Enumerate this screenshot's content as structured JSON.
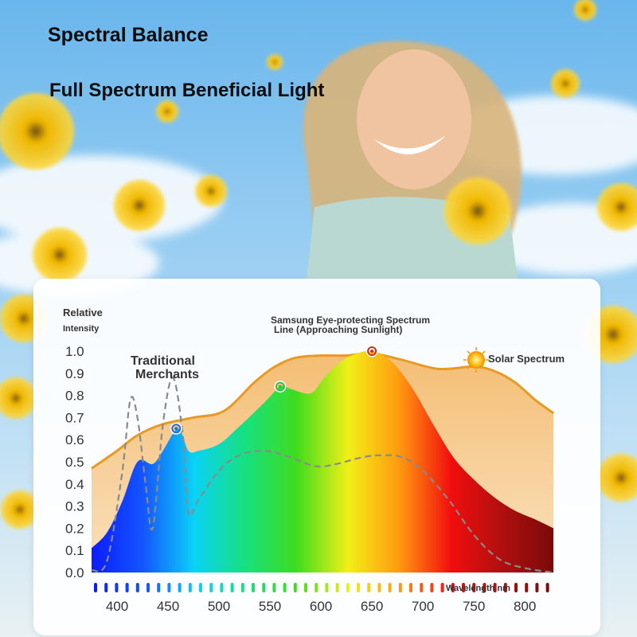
{
  "title": "Spectral Balance",
  "subtitle": "Full Spectrum Beneficial Light",
  "chart_data": {
    "type": "area",
    "ylabel_line1": "Relative",
    "ylabel_line2": "Intensity",
    "xlabel": "Wavelength nm",
    "ylim": [
      0.0,
      1.0
    ],
    "xlim": [
      375,
      828
    ],
    "yticks": [
      "0.0",
      "0.1",
      "0.2",
      "0.3",
      "0.4",
      "0.5",
      "0.6",
      "0.7",
      "0.8",
      "0.9",
      "1.0"
    ],
    "xticks": [
      400,
      450,
      500,
      550,
      600,
      650,
      700,
      750,
      800
    ],
    "annotations": {
      "samsung_line1": "Samsung Eye-protecting Spectrum",
      "samsung_line2": "Line (Approaching Sunlight)",
      "traditional_line1": "Traditional",
      "traditional_line2": "Merchants",
      "solar": "Solar Spectrum"
    },
    "series": [
      {
        "name": "Solar Spectrum",
        "color": "#e89a24",
        "x": [
          375,
          400,
          420,
          445,
          475,
          505,
          535,
          555,
          575,
          600,
          625,
          650,
          680,
          715,
          750,
          770,
          790,
          810,
          828
        ],
        "y": [
          0.47,
          0.55,
          0.62,
          0.67,
          0.7,
          0.73,
          0.86,
          0.93,
          0.97,
          0.98,
          0.98,
          0.99,
          0.96,
          0.92,
          0.93,
          0.91,
          0.86,
          0.78,
          0.72
        ]
      },
      {
        "name": "Samsung Eye-protecting Spectrum Line (Approaching Sunlight)",
        "colors": [
          "#0a1cff",
          "#1455ff",
          "#0ad2f5",
          "#17e07e",
          "#3fdc1c",
          "#f2ef18",
          "#ff9a10",
          "#f20e0e",
          "#b00f0f",
          "#7a0a0a"
        ],
        "x": [
          375,
          390,
          405,
          420,
          435,
          445,
          460,
          470,
          480,
          500,
          520,
          545,
          560,
          570,
          590,
          605,
          625,
          650,
          670,
          690,
          710,
          730,
          750,
          770,
          790,
          810,
          828
        ],
        "y": [
          0.11,
          0.18,
          0.32,
          0.5,
          0.49,
          0.55,
          0.65,
          0.55,
          0.55,
          0.58,
          0.66,
          0.77,
          0.84,
          0.83,
          0.81,
          0.89,
          0.97,
          1.0,
          0.95,
          0.83,
          0.67,
          0.52,
          0.42,
          0.34,
          0.28,
          0.24,
          0.2
        ]
      },
      {
        "name": "Traditional Merchants",
        "color": "#8a8a8a",
        "x": [
          375,
          390,
          405,
          413,
          420,
          428,
          435,
          445,
          455,
          465,
          470,
          480,
          500,
          520,
          545,
          570,
          595,
          615,
          640,
          660,
          680,
          700,
          725,
          750,
          775,
          800,
          828
        ],
        "y": [
          0.01,
          0.05,
          0.45,
          0.78,
          0.7,
          0.4,
          0.2,
          0.67,
          0.88,
          0.6,
          0.27,
          0.33,
          0.46,
          0.53,
          0.55,
          0.52,
          0.48,
          0.49,
          0.52,
          0.53,
          0.52,
          0.46,
          0.33,
          0.17,
          0.06,
          0.02,
          0.0
        ]
      }
    ],
    "markers": [
      {
        "x": 458,
        "y": 0.65,
        "color": "#2b6bd8"
      },
      {
        "x": 560,
        "y": 0.84,
        "color": "#33c146"
      },
      {
        "x": 650,
        "y": 1.0,
        "color": "#d32a1a"
      }
    ]
  }
}
